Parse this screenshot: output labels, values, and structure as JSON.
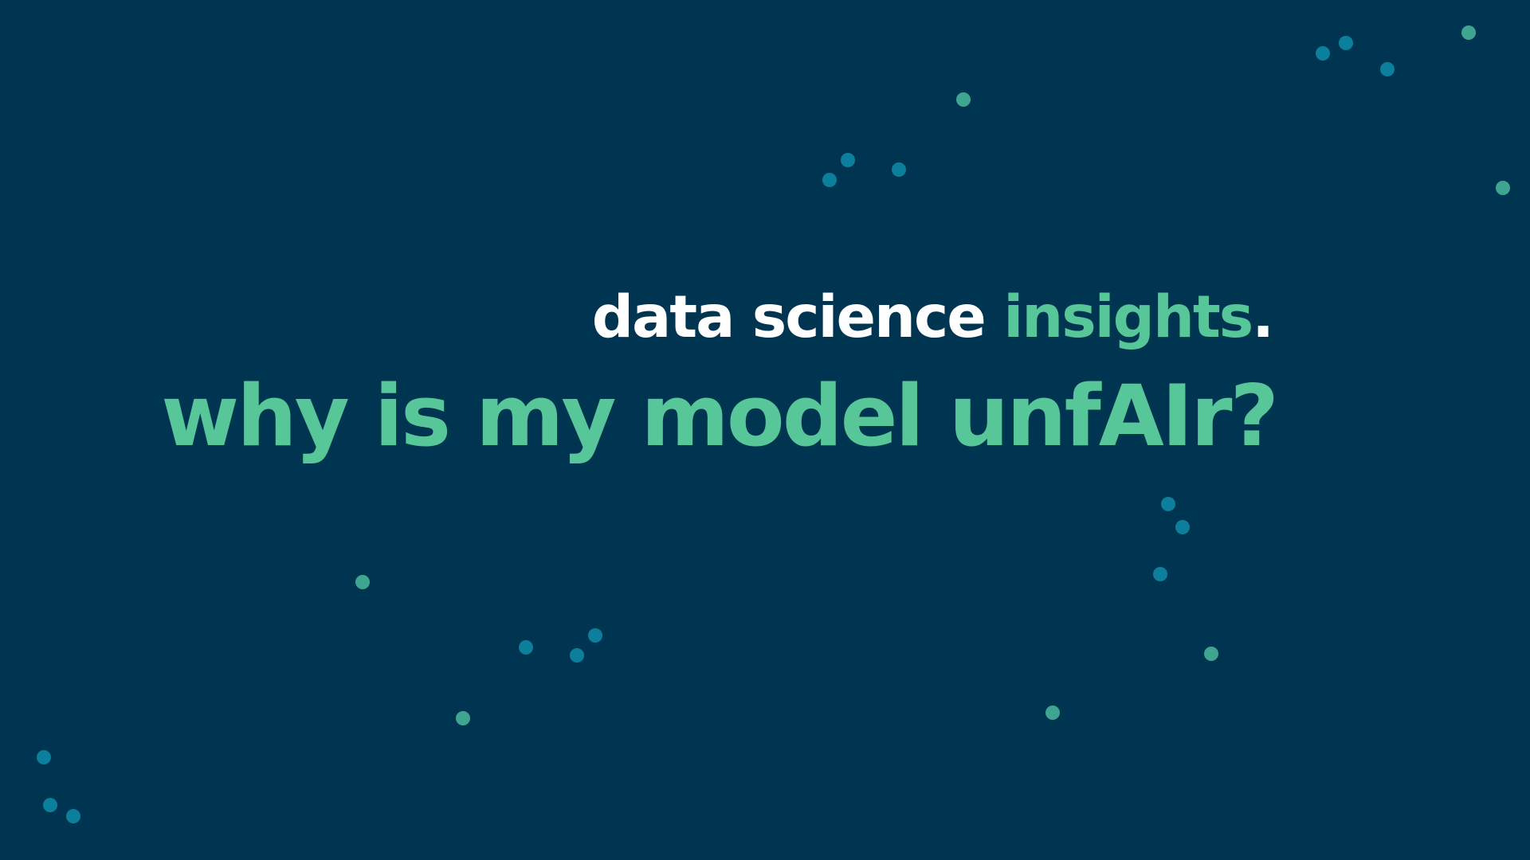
{
  "slide": {
    "kicker_part1": "data science ",
    "kicker_part2": "insights",
    "kicker_part3": ".",
    "title": "why is my model unfAIr?"
  },
  "colors": {
    "background": "#003551",
    "accent_green": "#57c698",
    "white": "#ffffff",
    "dot_teal": "#0b7f9c",
    "dot_green": "#3fa591"
  },
  "decoration": {
    "dot_pattern": "scattered-dots"
  }
}
